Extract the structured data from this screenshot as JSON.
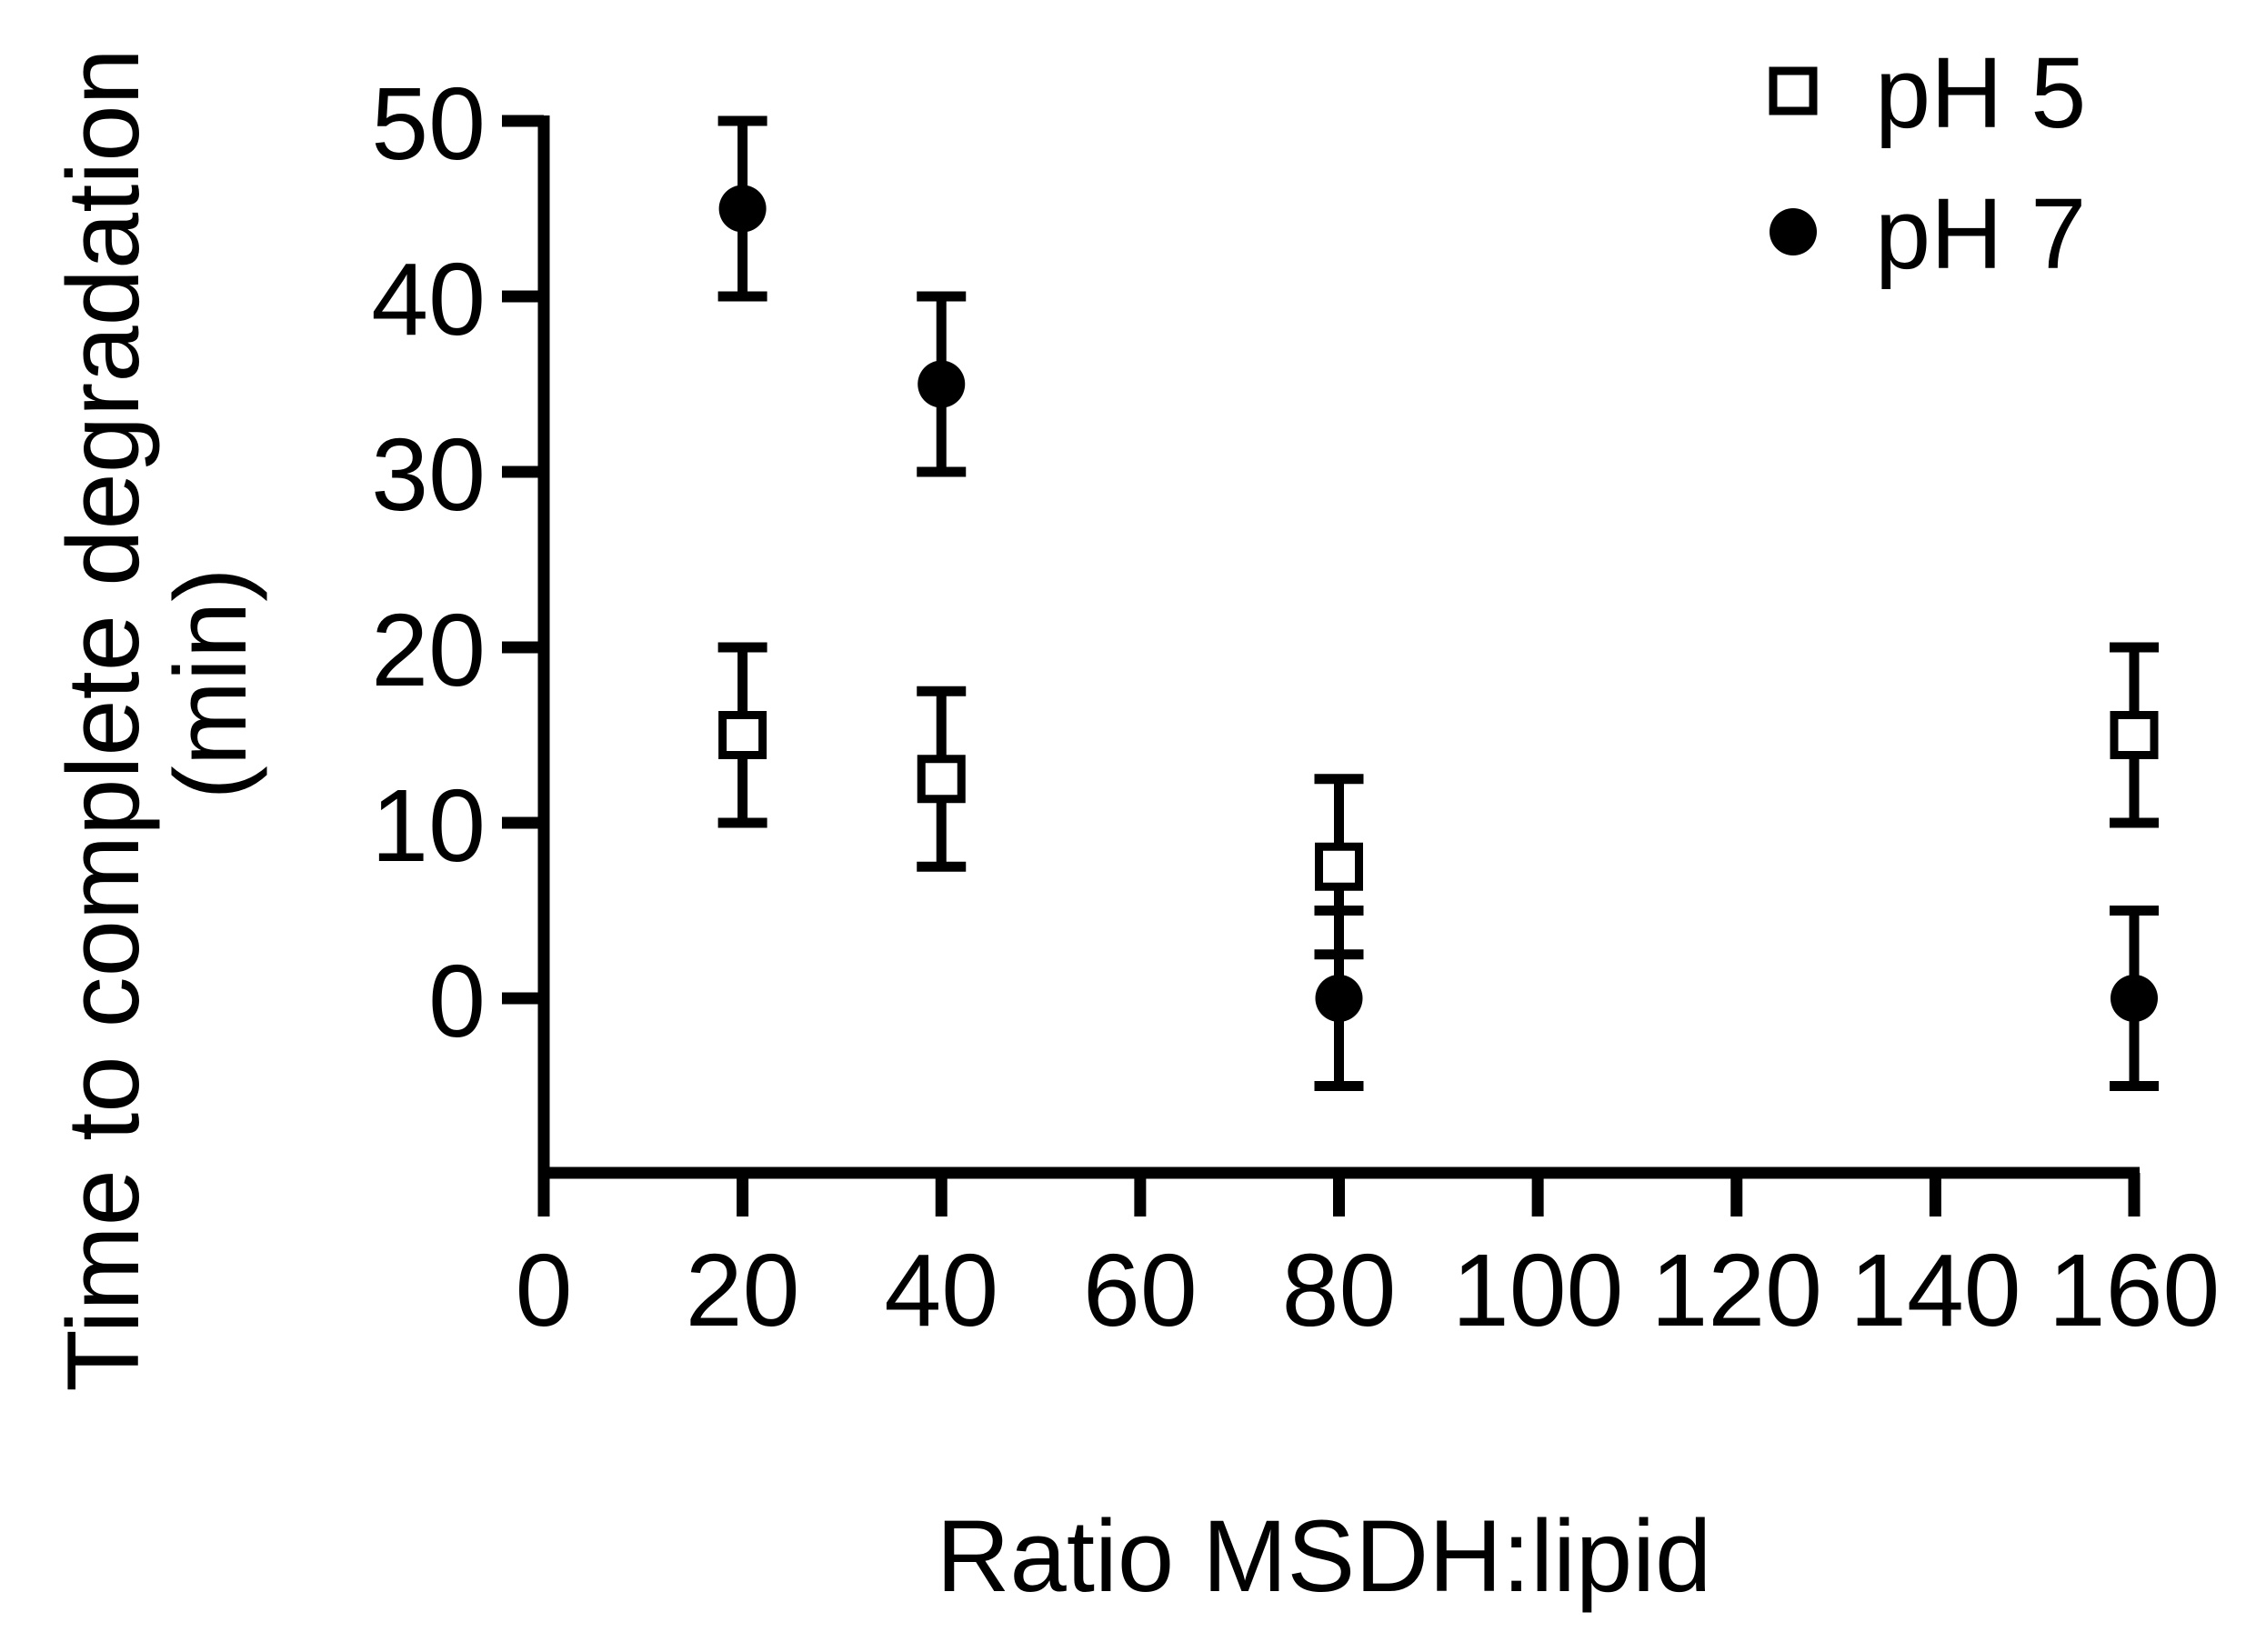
{
  "figure": {
    "background_color": "#ffffff",
    "ink_color": "#000000"
  },
  "chart_data": {
    "type": "scatter",
    "title": "",
    "xlabel": "Ratio MSDH:lipid",
    "ylabel_lines": [
      "Time to complete degradation",
      "(min)"
    ],
    "xlim": [
      0,
      160
    ],
    "ylim": [
      0,
      50
    ],
    "x_ticks": [
      0,
      20,
      40,
      60,
      80,
      100,
      120,
      140,
      160
    ],
    "y_ticks": [
      0,
      10,
      20,
      30,
      40,
      50
    ],
    "grid": false,
    "error_bar_type": "symmetric",
    "legend": {
      "position": "top-right",
      "entries": [
        {
          "label": "pH 5",
          "marker": "open-square"
        },
        {
          "label": "pH 7",
          "marker": "filled-circle"
        }
      ]
    },
    "series": [
      {
        "name": "pH 5",
        "marker": "open-square",
        "x": [
          20,
          40,
          80,
          160
        ],
        "y": [
          15,
          12.5,
          7.5,
          15
        ],
        "error": [
          5,
          5,
          5,
          5
        ]
      },
      {
        "name": "pH 7",
        "marker": "filled-circle",
        "x": [
          20,
          40,
          80,
          160
        ],
        "y": [
          45,
          35,
          0,
          0
        ],
        "error": [
          5,
          5,
          5,
          5
        ]
      }
    ]
  }
}
